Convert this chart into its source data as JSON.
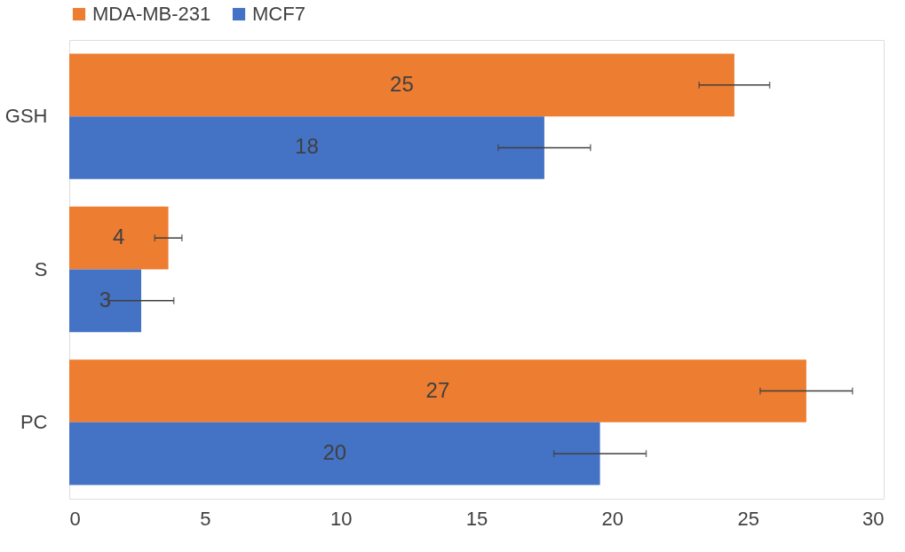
{
  "chart_data": {
    "type": "bar",
    "orientation": "horizontal",
    "categories": [
      "GSH",
      "S",
      "PC"
    ],
    "series": [
      {
        "name": "MDA-MB-231",
        "color": "#ed7d31",
        "values": [
          24.5,
          3.65,
          27.15
        ],
        "errors": [
          1.3,
          0.5,
          1.7
        ],
        "value_labels": [
          "25",
          "4",
          "27"
        ]
      },
      {
        "name": "MCF7",
        "color": "#4472c4",
        "values": [
          17.5,
          2.65,
          19.55
        ],
        "errors": [
          1.7,
          1.2,
          1.7
        ],
        "value_labels": [
          "18",
          "3",
          "20"
        ]
      }
    ],
    "xlim": [
      0,
      30
    ],
    "xticks": [
      0,
      5,
      10,
      15,
      20,
      25,
      30
    ],
    "grid": false,
    "legend": "top"
  }
}
